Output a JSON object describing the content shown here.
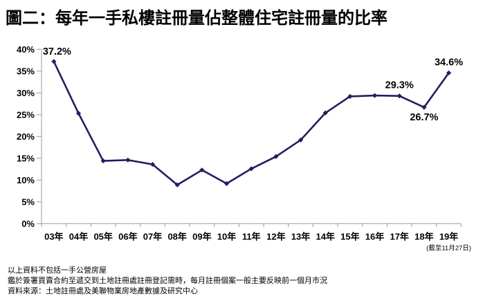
{
  "title": "圖二：每年一手私樓註冊量佔整體住宅註冊量的比率",
  "colors": {
    "line": "#1f1f60",
    "axis": "#999999",
    "text": "#000000"
  },
  "footnotes": {
    "line1": "以上資料不包括一手公營房屋",
    "line2": "鑑於簽署買賣合約至遞交到土地註冊處註冊登記需時，每月註冊個案一般主要反映前一個月市況",
    "line3": "資料來源：土地註冊處及美聯物業房地產數據及研究中心"
  },
  "chart_data": {
    "type": "line",
    "title": "圖二：每年一手私樓註冊量佔整體住宅註冊量的比率",
    "categories": [
      "03年",
      "04年",
      "05年",
      "06年",
      "07年",
      "08年",
      "09年",
      "10年",
      "11年",
      "12年",
      "13年",
      "14年",
      "15年",
      "16年",
      "17年",
      "18年",
      "19年"
    ],
    "values": [
      37.2,
      25.3,
      14.4,
      14.6,
      13.6,
      8.9,
      12.3,
      9.2,
      12.6,
      15.4,
      19.2,
      25.4,
      29.2,
      29.4,
      29.3,
      26.7,
      34.6
    ],
    "ylim": [
      0,
      40
    ],
    "ytick_step": 5,
    "ytick_suffix": "%",
    "grid": false,
    "legend": false,
    "annotations": [
      {
        "index": 0,
        "text": "37.2%",
        "position": "top-left"
      },
      {
        "index": 14,
        "text": "29.3%",
        "position": "above"
      },
      {
        "index": 15,
        "text": "26.7%",
        "position": "below"
      },
      {
        "index": 16,
        "text": "34.6%",
        "position": "above"
      }
    ],
    "x_axis_note": "(截至11月27日)"
  }
}
